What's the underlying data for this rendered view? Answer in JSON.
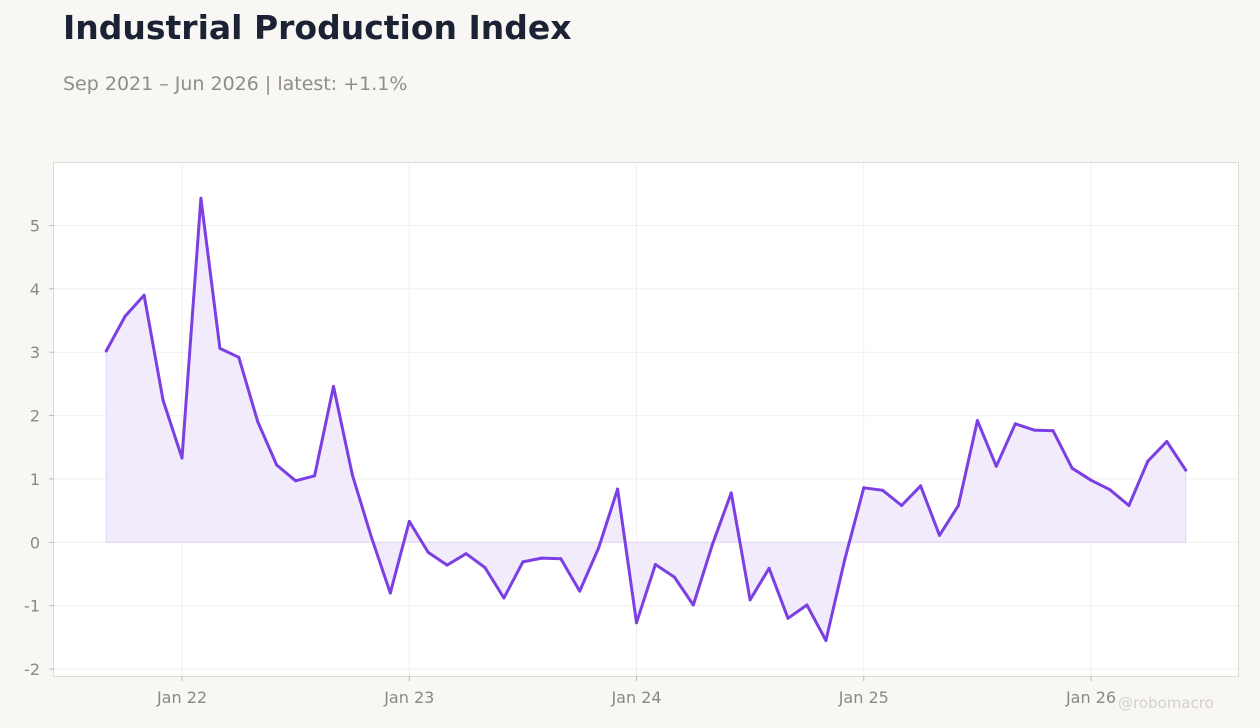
{
  "chart_data": {
    "type": "area",
    "title": "Industrial Production Index",
    "subtitle": "Sep 2021 – Jun 2026 | latest: +1.1%",
    "watermark": "@robomacro",
    "x_label": "",
    "y_label": "",
    "ylim": [
      -2.1,
      6.0
    ],
    "y_ticks": [
      -2,
      -1,
      0,
      1,
      2,
      3,
      4,
      5
    ],
    "y_tick_labels": [
      "-2",
      "-1",
      "0",
      "1",
      "2",
      "3",
      "4",
      "5"
    ],
    "x_ticks": [
      "2022-01",
      "2023-01",
      "2024-01",
      "2025-01",
      "2026-01"
    ],
    "x_tick_labels": [
      "Jan 22",
      "Jan 23",
      "Jan 24",
      "Jan 25",
      "Jan 26"
    ],
    "grid": true,
    "colors": {
      "line": "#7b3fe4",
      "fill": "#efe8fc",
      "background": "#f8f7f4",
      "plot_background": "#ffffff"
    },
    "series": [
      {
        "x": [
          "2021-09",
          "2021-10",
          "2021-11",
          "2021-12",
          "2022-01",
          "2022-02",
          "2022-03",
          "2022-04",
          "2022-05",
          "2022-06",
          "2022-07",
          "2022-08",
          "2022-09",
          "2022-10",
          "2022-11",
          "2022-12",
          "2023-01",
          "2023-02",
          "2023-03",
          "2023-04",
          "2023-05",
          "2023-06",
          "2023-07",
          "2023-08",
          "2023-09",
          "2023-10",
          "2023-11",
          "2023-12",
          "2024-01",
          "2024-02",
          "2024-03",
          "2024-04",
          "2024-05",
          "2024-06",
          "2024-07",
          "2024-08",
          "2024-09",
          "2024-10",
          "2024-11",
          "2024-12",
          "2025-01",
          "2025-02",
          "2025-03",
          "2025-04",
          "2025-05",
          "2025-06",
          "2025-07",
          "2025-08",
          "2025-09",
          "2025-10",
          "2025-11",
          "2025-12",
          "2026-01",
          "2026-02",
          "2026-03",
          "2026-04",
          "2026-05",
          "2026-06"
        ],
        "values": [
          3.02,
          3.57,
          3.9,
          2.24,
          1.33,
          5.43,
          3.06,
          2.92,
          1.9,
          1.22,
          0.97,
          1.05,
          2.46,
          1.06,
          0.08,
          -0.8,
          0.33,
          -0.16,
          -0.36,
          -0.18,
          -0.4,
          -0.88,
          -0.31,
          -0.25,
          -0.26,
          -0.77,
          -0.09,
          0.84,
          -1.27,
          -0.35,
          -0.55,
          -0.99,
          -0.04,
          0.78,
          -0.91,
          -0.41,
          -1.2,
          -0.99,
          -1.55,
          -0.27,
          0.86,
          0.82,
          0.58,
          0.89,
          0.11,
          0.58,
          1.92,
          1.2,
          1.87,
          1.77,
          1.76,
          1.17,
          0.98,
          0.83,
          0.58,
          1.28,
          1.59,
          1.14
        ]
      }
    ]
  }
}
